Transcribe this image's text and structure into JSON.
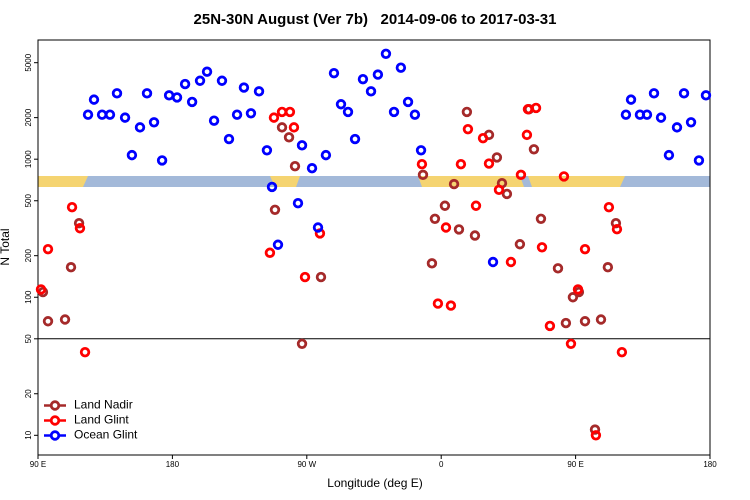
{
  "chart_data": {
    "type": "scatter",
    "title": "25N-30N August (Ver 7b)   2014-09-06 to 2017-03-31",
    "x_label": "Longitude (deg E)",
    "y_label": "N Total",
    "xlim": [
      90,
      540
    ],
    "xticks": [
      {
        "value": 90,
        "label": "90 E"
      },
      180,
      {
        "value": 270,
        "label": "90 W"
      },
      {
        "value": 360,
        "label": "0"
      },
      {
        "value": 450,
        "label": "90 E"
      },
      {
        "value": 540,
        "label": "180"
      }
    ],
    "ylim": [
      7.2,
      7300
    ],
    "log_y": true,
    "yticks": [
      10,
      20,
      50,
      100,
      200,
      500,
      1000,
      2000,
      5000
    ],
    "hlines": [
      50
    ],
    "legend": "lower left",
    "series": [
      {
        "name": "Land Nadir",
        "color": "#a52a2a",
        "x": [
          93.3,
          96.7,
          108.1,
          112.1,
          117.5,
          266.8,
          253.4,
          258.1,
          262.1,
          248.7,
          279.5,
          347.8,
          353.8,
          355.8,
          362.5,
          368.6,
          371.9,
          377.2,
          382.6,
          392,
          397.3,
          400.7,
          404,
          412.7,
          418.8,
          422.1,
          426.8,
          438.2,
          443.5,
          448.2,
          452.2,
          456.3,
          463,
          467,
          471.6,
          477
        ],
        "values": [
          109,
          67,
          69,
          165,
          344,
          46,
          1700,
          1440,
          890,
          430,
          140,
          770,
          176,
          370,
          460,
          660,
          310,
          2200,
          280,
          1500,
          1030,
          670,
          560,
          242,
          2300,
          1180,
          370,
          162,
          65,
          100,
          109,
          67,
          11,
          69,
          165,
          344
        ]
      },
      {
        "name": "Land Glint",
        "color": "#ff0000",
        "x": [
          92,
          96.7,
          112.8,
          118.1,
          121.5,
          248,
          253.4,
          258.7,
          261.4,
          268.8,
          278.8,
          245.3,
          347.1,
          357.8,
          366.5,
          363.2,
          373.2,
          377.9,
          383.3,
          388,
          392,
          398.7,
          406.7,
          413.4,
          417.4,
          418.1,
          423.5,
          427.5,
          432.8,
          442.2,
          446.9,
          451.6,
          456.3,
          472.3,
          477.7,
          481,
          463.6
        ],
        "values": [
          114,
          223,
          449,
          316,
          40,
          2000,
          2200,
          2200,
          1700,
          140,
          290,
          210,
          920,
          90,
          87,
          320,
          920,
          1650,
          460,
          1420,
          930,
          600,
          180,
          770,
          1500,
          2300,
          2350,
          230,
          62,
          750,
          46,
          114,
          223,
          449,
          311,
          40,
          10
        ]
      },
      {
        "name": "Ocean Glint",
        "color": "#0000ff",
        "x": [
          123.5,
          127.5,
          132.9,
          138.2,
          142.9,
          148.3,
          152.9,
          158.3,
          163,
          167.7,
          173.1,
          177.8,
          183.1,
          188.5,
          193.2,
          198.5,
          203.2,
          207.9,
          213.2,
          217.9,
          223.3,
          227.9,
          232.6,
          238,
          243.3,
          246.7,
          250.7,
          264.1,
          266.8,
          273.5,
          277.5,
          282.8,
          288.2,
          292.9,
          297.6,
          302.3,
          307.6,
          313,
          317.6,
          323,
          328.4,
          333,
          337.8,
          342.4,
          346.5,
          394.7,
          483.7,
          487.1,
          493.1,
          497.8,
          502.5,
          507.2,
          512.5,
          517.9,
          522.6,
          527.3,
          532.6,
          537.3
        ],
        "values": [
          2100,
          2700,
          2100,
          2100,
          3000,
          2000,
          1070,
          1700,
          3000,
          1850,
          980,
          2900,
          2800,
          3500,
          2600,
          3700,
          4300,
          1900,
          3700,
          1400,
          2100,
          3300,
          2150,
          3100,
          1160,
          630,
          240,
          480,
          1260,
          860,
          320,
          1070,
          4200,
          2500,
          2200,
          1400,
          3800,
          3100,
          4100,
          5800,
          2200,
          4600,
          2600,
          2100,
          1160,
          180,
          2100,
          2700,
          2100,
          2100,
          3000,
          2000,
          1070,
          1700,
          3000,
          1850,
          980,
          2900
        ]
      }
    ]
  }
}
